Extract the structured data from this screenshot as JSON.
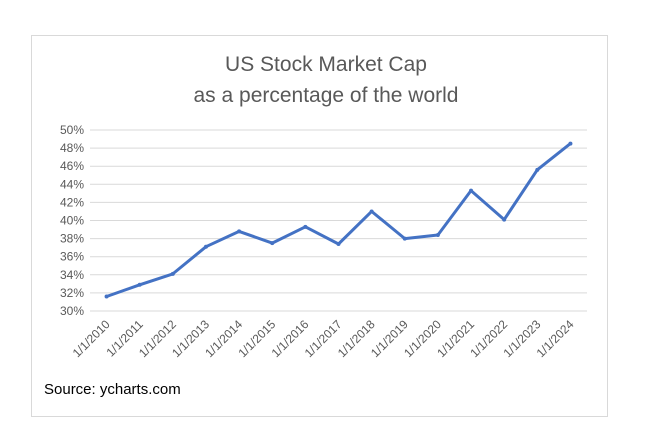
{
  "chart_data": {
    "type": "line",
    "title": "US Stock Market Cap",
    "subtitle": "as a percentage of the world",
    "xlabel": "",
    "ylabel": "",
    "ylim": [
      30,
      50
    ],
    "y_ticks": [
      "30%",
      "32%",
      "34%",
      "36%",
      "38%",
      "40%",
      "42%",
      "44%",
      "46%",
      "48%",
      "50%"
    ],
    "categories": [
      "1/1/2010",
      "1/1/2011",
      "1/1/2012",
      "1/1/2013",
      "1/1/2014",
      "1/1/2015",
      "1/1/2016",
      "1/1/2017",
      "1/1/2018",
      "1/1/2019",
      "1/1/2020",
      "1/1/2021",
      "1/1/2022",
      "1/1/2023",
      "1/1/2024"
    ],
    "series": [
      {
        "values": [
          31.6,
          32.9,
          34.1,
          37.1,
          38.8,
          37.5,
          39.3,
          37.4,
          41.0,
          38.0,
          38.4,
          43.3,
          40.1,
          45.6,
          48.5
        ],
        "color": "#4472c4"
      }
    ],
    "grid": true,
    "legend": "none"
  },
  "source_note": "Source: ycharts.com",
  "colors": {
    "line": "#4472c4",
    "grid": "#d9d9d9",
    "text": "#595959"
  }
}
